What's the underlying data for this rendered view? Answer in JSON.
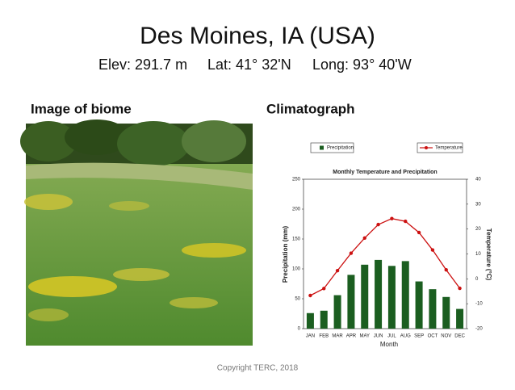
{
  "slide": {
    "title": "Des Moines, IA (USA)",
    "elev": "Elev: 291.7 m",
    "lat": "Lat: 41° 32'N",
    "long": "Long: 93° 40'W",
    "image_heading": "Image of biome",
    "chart_heading": "Climatograph",
    "copyright": "Copyright TERC, 2018"
  },
  "chart_data": {
    "type": "bar_line",
    "title": "Monthly Temperature and Precipitation",
    "xlabel": "Month",
    "ylabel": "Precipitation (mm)",
    "y2label": "Temperature (°C)",
    "categories": [
      "JAN",
      "FEB",
      "MAR",
      "APR",
      "MAY",
      "JUN",
      "JUL",
      "AUG",
      "SEP",
      "OCT",
      "NOV",
      "DEC"
    ],
    "series": [
      {
        "name": "Precipitation",
        "type": "bar",
        "color": "#1b5e20",
        "values": [
          26,
          30,
          56,
          90,
          107,
          115,
          105,
          113,
          79,
          66,
          53,
          33
        ]
      },
      {
        "name": "Temperature",
        "type": "line",
        "axis": "y2",
        "color": "#cc1111",
        "values": [
          -6.7,
          -3.9,
          3.3,
          10.3,
          16.4,
          21.8,
          24.2,
          23.1,
          18.6,
          11.6,
          3.6,
          -3.8
        ]
      }
    ],
    "ylim": [
      0,
      250
    ],
    "yticks": [
      0,
      50,
      100,
      150,
      200,
      250
    ],
    "y2lim": [
      -20,
      40
    ],
    "y2ticks": [
      -20,
      -10,
      0,
      10,
      20,
      30,
      40
    ]
  }
}
